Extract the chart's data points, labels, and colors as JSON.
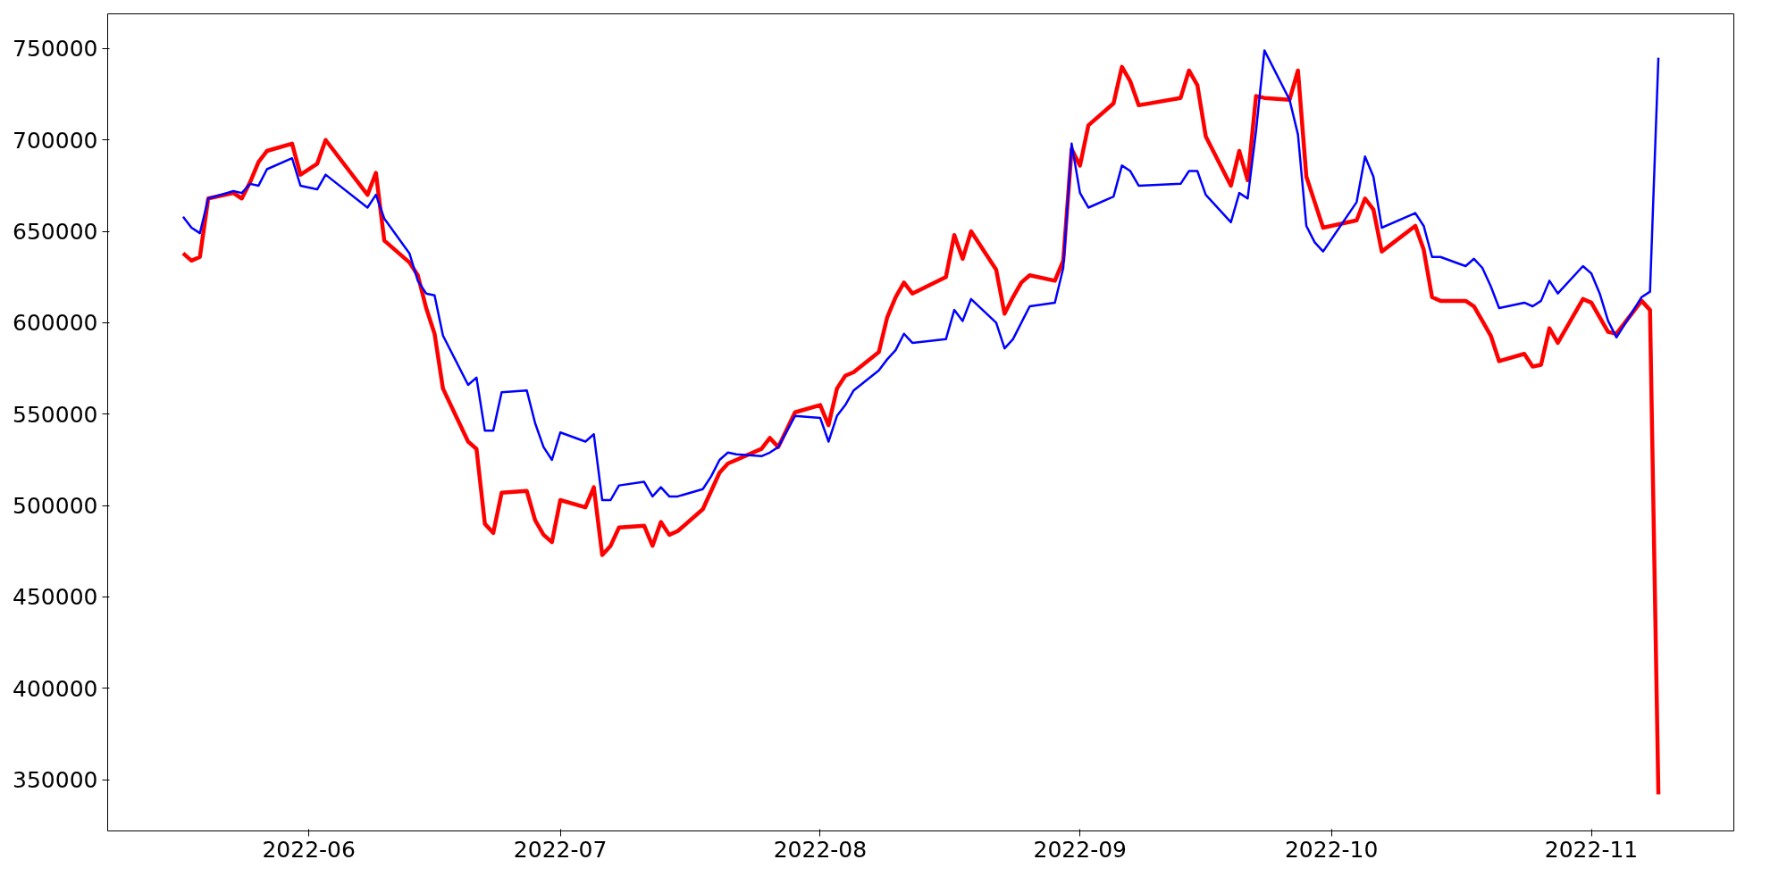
{
  "chart_data": {
    "type": "line",
    "x": [
      "2022-05-17",
      "2022-05-18",
      "2022-05-19",
      "2022-05-20",
      "2022-05-23",
      "2022-05-24",
      "2022-05-25",
      "2022-05-26",
      "2022-05-27",
      "2022-05-30",
      "2022-05-31",
      "2022-06-02",
      "2022-06-03",
      "2022-06-08",
      "2022-06-09",
      "2022-06-10",
      "2022-06-13",
      "2022-06-14",
      "2022-06-15",
      "2022-06-16",
      "2022-06-17",
      "2022-06-20",
      "2022-06-21",
      "2022-06-22",
      "2022-06-23",
      "2022-06-24",
      "2022-06-27",
      "2022-06-28",
      "2022-06-29",
      "2022-06-30",
      "2022-07-01",
      "2022-07-04",
      "2022-07-05",
      "2022-07-06",
      "2022-07-07",
      "2022-07-08",
      "2022-07-11",
      "2022-07-12",
      "2022-07-13",
      "2022-07-14",
      "2022-07-15",
      "2022-07-18",
      "2022-07-19",
      "2022-07-20",
      "2022-07-21",
      "2022-07-22",
      "2022-07-25",
      "2022-07-26",
      "2022-07-27",
      "2022-07-29",
      "2022-08-01",
      "2022-08-02",
      "2022-08-03",
      "2022-08-04",
      "2022-08-05",
      "2022-08-08",
      "2022-08-09",
      "2022-08-10",
      "2022-08-11",
      "2022-08-12",
      "2022-08-16",
      "2022-08-17",
      "2022-08-18",
      "2022-08-19",
      "2022-08-22",
      "2022-08-23",
      "2022-08-24",
      "2022-08-25",
      "2022-08-26",
      "2022-08-29",
      "2022-08-30",
      "2022-08-31",
      "2022-09-01",
      "2022-09-02",
      "2022-09-05",
      "2022-09-06",
      "2022-09-07",
      "2022-09-08",
      "2022-09-13",
      "2022-09-14",
      "2022-09-15",
      "2022-09-16",
      "2022-09-19",
      "2022-09-20",
      "2022-09-21",
      "2022-09-22",
      "2022-09-23",
      "2022-09-26",
      "2022-09-27",
      "2022-09-28",
      "2022-09-29",
      "2022-09-30",
      "2022-10-04",
      "2022-10-05",
      "2022-10-06",
      "2022-10-07",
      "2022-10-11",
      "2022-10-12",
      "2022-10-13",
      "2022-10-14",
      "2022-10-17",
      "2022-10-18",
      "2022-10-19",
      "2022-10-20",
      "2022-10-21",
      "2022-10-24",
      "2022-10-25",
      "2022-10-26",
      "2022-10-27",
      "2022-10-28",
      "2022-10-31",
      "2022-11-01",
      "2022-11-02",
      "2022-11-03",
      "2022-11-04",
      "2022-11-07",
      "2022-11-08",
      "2022-11-09"
    ],
    "series": [
      {
        "color": "#ff0000",
        "values": [
          638000,
          634000,
          636000,
          668000,
          671000,
          668000,
          677000,
          688000,
          694000,
          698000,
          681000,
          687000,
          700000,
          670000,
          682000,
          645000,
          633000,
          626000,
          608000,
          594000,
          564000,
          535000,
          531000,
          490000,
          485000,
          507000,
          508000,
          492000,
          484000,
          480000,
          503000,
          499000,
          510000,
          473000,
          478000,
          488000,
          489000,
          478000,
          491000,
          484000,
          486000,
          498000,
          508000,
          518000,
          523000,
          525000,
          531000,
          537000,
          532000,
          551000,
          555000,
          544000,
          564000,
          571000,
          573000,
          584000,
          603000,
          614000,
          622000,
          616000,
          625000,
          648000,
          635000,
          650000,
          629000,
          605000,
          614000,
          622000,
          626000,
          623000,
          634000,
          695000,
          686000,
          708000,
          720000,
          740000,
          732000,
          719000,
          723000,
          738000,
          730000,
          702000,
          675000,
          694000,
          678000,
          724000,
          723000,
          722000,
          738000,
          680000,
          666000,
          652000,
          656000,
          668000,
          662000,
          639000,
          653000,
          640000,
          614000,
          612000,
          612000,
          609000,
          601000,
          593000,
          579000,
          583000,
          576000,
          577000,
          597000,
          589000,
          613000,
          611000,
          603000,
          595000,
          594000,
          612000,
          607000,
          342000
        ]
      },
      {
        "color": "#0000ff",
        "values": [
          658000,
          652000,
          649000,
          668000,
          672000,
          671000,
          676000,
          675000,
          684000,
          690000,
          675000,
          673000,
          681000,
          663000,
          670000,
          657000,
          638000,
          623000,
          616000,
          615000,
          593000,
          566000,
          570000,
          541000,
          541000,
          562000,
          563000,
          545000,
          532000,
          525000,
          540000,
          535000,
          539000,
          503000,
          503000,
          511000,
          513000,
          505000,
          510000,
          505000,
          505000,
          509000,
          516000,
          525000,
          529000,
          528000,
          527000,
          529000,
          532000,
          549000,
          548000,
          535000,
          549000,
          555000,
          563000,
          574000,
          580000,
          585000,
          594000,
          589000,
          591000,
          607000,
          601000,
          613000,
          600000,
          586000,
          591000,
          600000,
          609000,
          611000,
          630000,
          698000,
          671000,
          663000,
          669000,
          686000,
          683000,
          675000,
          676000,
          683000,
          683000,
          670000,
          655000,
          671000,
          668000,
          705000,
          749000,
          722000,
          703000,
          653000,
          644000,
          639000,
          666000,
          691000,
          680000,
          652000,
          660000,
          653000,
          636000,
          636000,
          631000,
          635000,
          630000,
          620000,
          608000,
          611000,
          609000,
          612000,
          623000,
          616000,
          631000,
          627000,
          616000,
          601000,
          592000,
          614000,
          617000,
          745000
        ]
      }
    ],
    "xlim": [
      "2022-05-08",
      "2022-11-18"
    ],
    "ylim": [
      322000,
      769000
    ],
    "xticks": [
      {
        "value": "2022-06-01",
        "label": "2022-06"
      },
      {
        "value": "2022-07-01",
        "label": "2022-07"
      },
      {
        "value": "2022-08-01",
        "label": "2022-08"
      },
      {
        "value": "2022-09-01",
        "label": "2022-09"
      },
      {
        "value": "2022-10-01",
        "label": "2022-10"
      },
      {
        "value": "2022-11-01",
        "label": "2022-11"
      }
    ],
    "yticks": [
      350000,
      400000,
      450000,
      500000,
      550000,
      600000,
      650000,
      700000,
      750000
    ],
    "grid": false,
    "line_style": "solid",
    "marker": "none"
  }
}
